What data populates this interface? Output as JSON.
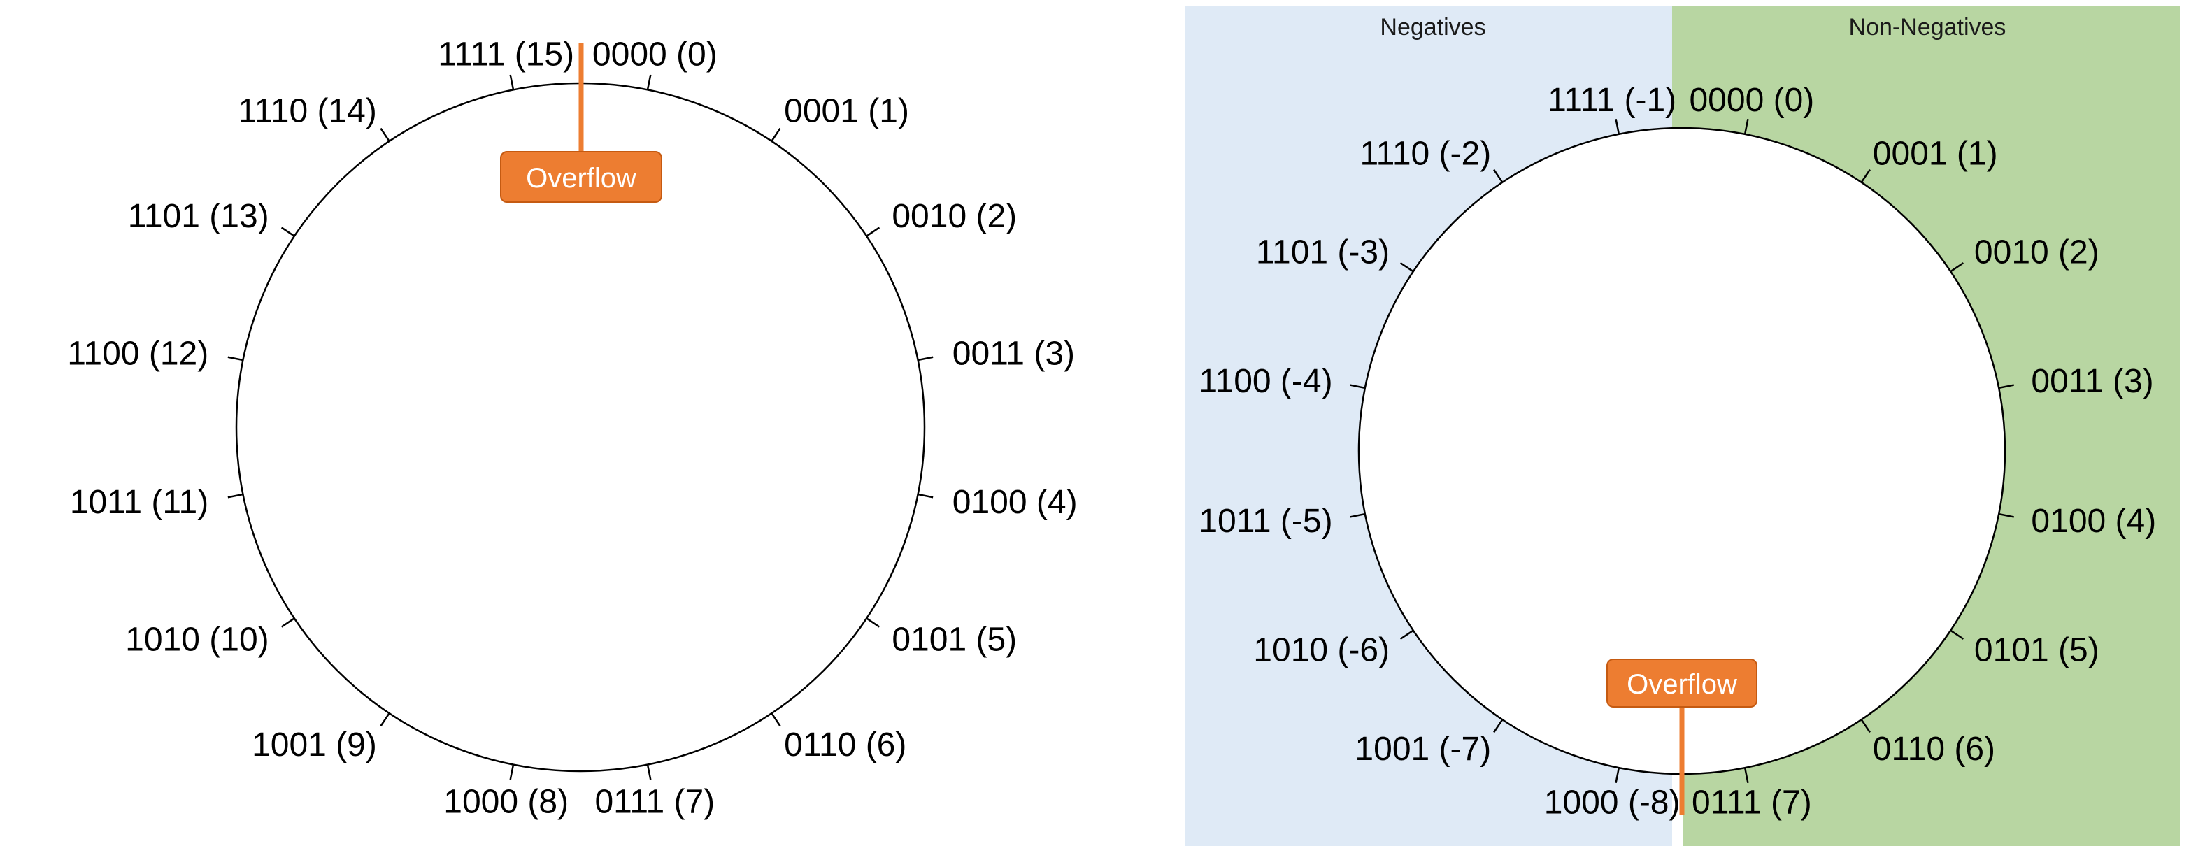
{
  "colors": {
    "negatives_region": "#dfeaf6",
    "non_negatives_region": "#b8d6a2",
    "overflow_fill": "#ed7d31",
    "overflow_border": "#c55a11",
    "circle_stroke": "#000000"
  },
  "unsigned_wheel": {
    "overflow_label": "Overflow",
    "labels": [
      "0000 (0)",
      "0001 (1)",
      "0010 (2)",
      "0011 (3)",
      "0100 (4)",
      "0101 (5)",
      "0110 (6)",
      "0111 (7)",
      "1000 (8)",
      "1001 (9)",
      "1010 (10)",
      "1011 (11)",
      "1100 (12)",
      "1101 (13)",
      "1110 (14)",
      "1111 (15)"
    ]
  },
  "signed_wheel": {
    "negatives_label": "Negatives",
    "non_negatives_label": "Non-Negatives",
    "overflow_label": "Overflow",
    "labels": [
      "0000 (0)",
      "0001 (1)",
      "0010 (2)",
      "0011 (3)",
      "0100 (4)",
      "0101 (5)",
      "0110 (6)",
      "0111 (7)",
      "1000 (-8)",
      "1001 (-7)",
      "1010 (-6)",
      "1011 (-5)",
      "1100 (-4)",
      "1101 (-3)",
      "1110 (-2)",
      "1111 (-1)"
    ]
  }
}
